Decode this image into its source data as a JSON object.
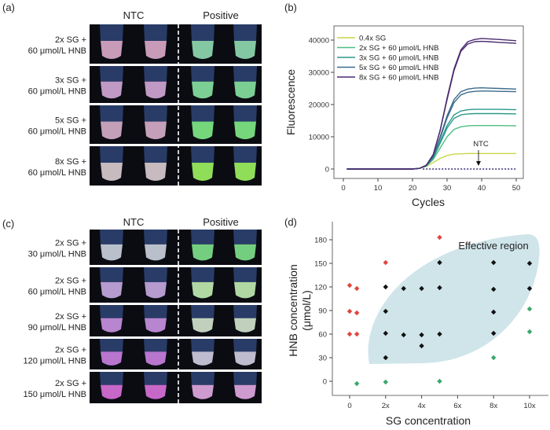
{
  "panels": {
    "a": {
      "label": "(a)",
      "headers": [
        "NTC",
        "Positive"
      ],
      "rows": [
        {
          "line1": "2x SG +",
          "line2": "60 μmol/L HNB",
          "ntc_color": "#d9a8c8",
          "pos_color": "#8fd9b0"
        },
        {
          "line1": "3x SG +",
          "line2": "60 μmol/L HNB",
          "ntc_color": "#d0a6d4",
          "pos_color": "#86e0a0"
        },
        {
          "line1": "5x SG +",
          "line2": "60 μmol/L HNB",
          "ntc_color": "#d5acc8",
          "pos_color": "#7fe885"
        },
        {
          "line1": "8x SG +",
          "line2": "60 μmol/L HNB",
          "ntc_color": "#d8cbcf",
          "pos_color": "#9cf060"
        }
      ]
    },
    "c": {
      "label": "(c)",
      "headers": [
        "NTC",
        "Positive"
      ],
      "rows": [
        {
          "line1": "2x SG +",
          "line2": "30 μmol/L HNB",
          "ntc_color": "#c9d0dc",
          "pos_color": "#7ee08a"
        },
        {
          "line1": "2x SG +",
          "line2": "60 μmol/L HNB",
          "ntc_color": "#c6a8df",
          "pos_color": "#c0eab0"
        },
        {
          "line1": "2x SG +",
          "line2": "90 μmol/L HNB",
          "ntc_color": "#c890e0",
          "pos_color": "#d0e2cc"
        },
        {
          "line1": "2x SG +",
          "line2": "120 μmol/L HNB",
          "ntc_color": "#c880e0",
          "pos_color": "#d0cce0"
        },
        {
          "line1": "2x SG +",
          "line2": "150 μmol/L HNB",
          "ntc_color": "#d870d8",
          "pos_color": "#e0a8e0"
        }
      ]
    }
  },
  "chart_data": [
    {
      "panel_label": "(b)",
      "type": "line",
      "xlabel": "Cycles",
      "ylabel": "Fluorescence",
      "xlim": [
        0,
        50
      ],
      "ylim": [
        0,
        40000
      ],
      "xticks": [
        0,
        10,
        20,
        30,
        40,
        50
      ],
      "yticks": [
        0,
        10000,
        20000,
        30000,
        40000
      ],
      "grid": false,
      "legend_position": "top-left",
      "x": [
        1,
        10,
        20,
        22,
        24,
        26,
        28,
        30,
        32,
        34,
        36,
        38,
        40,
        42,
        45,
        50
      ],
      "series": [
        {
          "name": "0.4x SG",
          "color": "#c8d648",
          "replicates": [
            [
              0,
              0,
              0,
              200,
              800,
              2000,
              3300,
              4200,
              4600,
              4700,
              4800,
              4800,
              4800,
              4800,
              4800,
              4800
            ]
          ]
        },
        {
          "name": "2x SG + 60 μmol/L HNB",
          "color": "#4cbf82",
          "replicates": [
            [
              0,
              0,
              0,
              200,
              900,
              3000,
              6500,
              10000,
              12300,
              13100,
              13400,
              13500,
              13500,
              13500,
              13500,
              13400
            ]
          ]
        },
        {
          "name": "3x SG + 60 μmol/L HNB",
          "color": "#2a9a8a",
          "replicates": [
            [
              0,
              0,
              0,
              200,
              1000,
              3600,
              8500,
              13500,
              16800,
              18000,
              18400,
              18500,
              18500,
              18500,
              18500,
              18400
            ],
            [
              0,
              0,
              0,
              200,
              1000,
              3400,
              8000,
              12700,
              15700,
              16800,
              17100,
              17200,
              17200,
              17200,
              17200,
              17100
            ]
          ]
        },
        {
          "name": "5x SG + 60 μmol/L HNB",
          "color": "#3a6a8c",
          "replicates": [
            [
              0,
              0,
              0,
              200,
              1100,
              4000,
              10000,
              16500,
              21500,
              24000,
              24800,
              25100,
              25200,
              25100,
              25000,
              24800
            ],
            [
              0,
              0,
              0,
              200,
              1100,
              3900,
              9600,
              15800,
              20600,
              23000,
              23800,
              24100,
              24200,
              24200,
              24100,
              24000
            ]
          ]
        },
        {
          "name": "8x SG + 60 μmol/L HNB",
          "color": "#4a2a70",
          "replicates": [
            [
              0,
              0,
              0,
              200,
              1200,
              4500,
              12000,
              22000,
              31000,
              37000,
              39500,
              40200,
              40500,
              40400,
              40200,
              39800
            ],
            [
              0,
              0,
              0,
              200,
              1200,
              4500,
              12000,
              21500,
              30500,
              36500,
              38800,
              39500,
              39600,
              39500,
              39300,
              39000
            ]
          ]
        }
      ],
      "ntc": {
        "label": "NTC",
        "x_range": [
          23,
          50
        ],
        "value": 0,
        "style": "dotted",
        "color": "#3a2a70"
      }
    },
    {
      "panel_label": "(d)",
      "type": "scatter",
      "xlabel": "SG concentration",
      "ylabel": "HNB concentration",
      "ylabel_unit": "(μmol/L)",
      "xticks": [
        0,
        2,
        4,
        6,
        8,
        10
      ],
      "xtick_labels": [
        "0",
        "2x",
        "4x",
        "6x",
        "8x",
        "10x"
      ],
      "yticks": [
        0,
        30,
        60,
        90,
        120,
        150,
        180
      ],
      "grid": false,
      "annotation": "Effective region",
      "region_color": "#cfe5ea",
      "colors": {
        "red": "#e0463c",
        "black": "#111111",
        "green": "#3aa86a"
      },
      "points": {
        "red": [
          [
            0,
            122
          ],
          [
            0.4,
            118
          ],
          [
            0,
            89
          ],
          [
            0.4,
            87
          ],
          [
            0,
            60
          ],
          [
            0.4,
            60
          ],
          [
            2,
            151
          ],
          [
            5,
            183
          ]
        ],
        "black": [
          [
            2,
            120
          ],
          [
            2,
            89
          ],
          [
            2,
            61
          ],
          [
            2,
            30
          ],
          [
            3,
            118
          ],
          [
            3,
            59
          ],
          [
            4,
            118
          ],
          [
            4,
            59
          ],
          [
            4,
            45
          ],
          [
            5,
            151
          ],
          [
            5,
            119
          ],
          [
            5,
            60
          ],
          [
            8,
            151
          ],
          [
            8,
            117
          ],
          [
            8,
            88
          ],
          [
            8,
            61
          ],
          [
            10,
            150
          ],
          [
            10,
            118
          ]
        ],
        "green": [
          [
            0.4,
            -3
          ],
          [
            2,
            -1
          ],
          [
            5,
            0
          ],
          [
            8,
            30
          ],
          [
            10,
            92
          ],
          [
            10,
            63
          ]
        ]
      }
    }
  ]
}
